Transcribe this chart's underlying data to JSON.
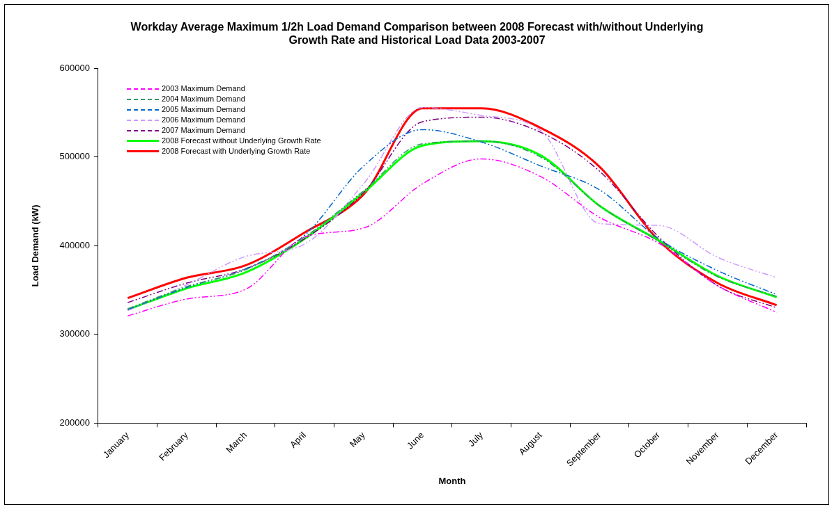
{
  "chart_data": {
    "type": "line",
    "title": "Workday Average Maximum 1/2h Load Demand Comparison between 2008 Forecast with/without Underlying Growth Rate and Historical Load Data 2003-2007",
    "xlabel": "Month",
    "ylabel": "Load Demand (kW)",
    "categories": [
      "January",
      "February",
      "March",
      "April",
      "May",
      "June",
      "July",
      "August",
      "September",
      "October",
      "November",
      "December"
    ],
    "ylim": [
      200000,
      600000
    ],
    "yticks": [
      200000,
      300000,
      400000,
      500000,
      600000
    ],
    "grid": false,
    "legend": "top left",
    "marker": "none",
    "series": [
      {
        "name": "2003 Maximum Demand",
        "color": "#ff00ff",
        "line_style": "dashed",
        "values": [
          321000,
          340000,
          351000,
          410000,
          420000,
          470000,
          498000,
          478000,
          432000,
          403000,
          355000,
          325000
        ]
      },
      {
        "name": "2004 Maximum Demand",
        "color": "#339966",
        "line_style": "dashed",
        "values": [
          329000,
          354000,
          373000,
          410000,
          462000,
          515000,
          518000,
          500000,
          445000,
          405000,
          365000,
          343000
        ]
      },
      {
        "name": "2005 Maximum Demand",
        "color": "#0066cc",
        "line_style": "dashed",
        "values": [
          328000,
          353000,
          374000,
          412000,
          490000,
          531000,
          517000,
          490000,
          463000,
          408000,
          372000,
          345000
        ]
      },
      {
        "name": "2006 Maximum Demand",
        "color": "#cc99ff",
        "line_style": "dashed",
        "values": [
          327000,
          356000,
          388000,
          402000,
          470000,
          556000,
          547000,
          530000,
          425000,
          423000,
          387000,
          364000
        ]
      },
      {
        "name": "2007 Maximum Demand",
        "color": "#800080",
        "line_style": "dashed",
        "values": [
          336000,
          358000,
          374000,
          408000,
          460000,
          540000,
          545000,
          528000,
          484000,
          410000,
          355000,
          330000
        ]
      },
      {
        "name": "2008 Forecast without Underlying Growth Rate",
        "color": "#00ff00",
        "line_style": "solid",
        "values": [
          328000,
          352000,
          370000,
          408000,
          460000,
          513000,
          518000,
          502000,
          445000,
          406000,
          366000,
          342000
        ]
      },
      {
        "name": "2008 Forecast with Underlying Growth Rate",
        "color": "#ff0000",
        "line_style": "solid",
        "values": [
          341000,
          364000,
          378000,
          415000,
          458000,
          555000,
          555000,
          533000,
          489000,
          406000,
          358000,
          333000
        ]
      }
    ]
  }
}
